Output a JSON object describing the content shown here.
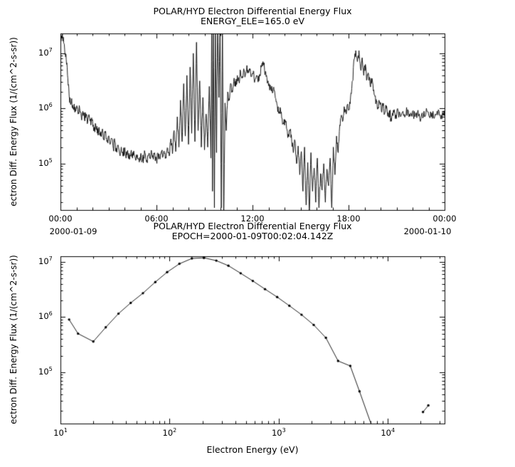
{
  "chart_data": [
    {
      "type": "line",
      "plot": "time_series",
      "title": "POLAR/HYD  Electron Differential Energy Flux",
      "subtitle": "ENERGY_ELE=165.0 eV",
      "ylabel": "ectron Diff. Energy Flux (1/(cm^2-s-sr))",
      "xlabel": "",
      "x_tick_labels": [
        "00:00",
        "06:00",
        "12:00",
        "18:00",
        "00:00"
      ],
      "x_tick_hours": [
        0,
        6,
        12,
        18,
        24
      ],
      "x_minor_every_hours": 1,
      "x_date_left": "2000-01-09",
      "x_date_right": "2000-01-10",
      "x_range_hours": [
        0,
        24
      ],
      "y_scale": "log10",
      "y_range_log10": [
        4.16,
        7.36
      ],
      "y_tick_exponents": [
        5,
        6,
        7
      ],
      "noise_amp_log10": 0.09,
      "line_color": "#000000",
      "legend": "none",
      "grid": "off",
      "points_t_hours_log10flux": [
        [
          0.0,
          7.28
        ],
        [
          0.07,
          7.32
        ],
        [
          0.14,
          7.25
        ],
        [
          0.22,
          7.18
        ],
        [
          0.3,
          7.0
        ],
        [
          0.38,
          6.8
        ],
        [
          0.46,
          6.55
        ],
        [
          0.54,
          6.25
        ],
        [
          0.62,
          6.1
        ],
        [
          0.7,
          6.18
        ],
        [
          0.78,
          6.0
        ],
        [
          0.86,
          6.08
        ],
        [
          0.94,
          5.95
        ],
        [
          1.02,
          6.05
        ],
        [
          1.1,
          5.9
        ],
        [
          1.2,
          6.0
        ],
        [
          1.3,
          5.85
        ],
        [
          1.4,
          5.95
        ],
        [
          1.5,
          5.8
        ],
        [
          1.6,
          5.9
        ],
        [
          1.7,
          5.75
        ],
        [
          1.8,
          5.85
        ],
        [
          1.9,
          5.7
        ],
        [
          2.0,
          5.8
        ],
        [
          2.1,
          5.6
        ],
        [
          2.2,
          5.72
        ],
        [
          2.3,
          5.55
        ],
        [
          2.4,
          5.66
        ],
        [
          2.5,
          5.5
        ],
        [
          2.6,
          5.6
        ],
        [
          2.7,
          5.45
        ],
        [
          2.8,
          5.56
        ],
        [
          2.9,
          5.4
        ],
        [
          3.0,
          5.5
        ],
        [
          3.1,
          5.35
        ],
        [
          3.2,
          5.45
        ],
        [
          3.3,
          5.28
        ],
        [
          3.4,
          5.4
        ],
        [
          3.5,
          5.22
        ],
        [
          3.6,
          5.34
        ],
        [
          3.7,
          5.18
        ],
        [
          3.8,
          5.3
        ],
        [
          3.9,
          5.14
        ],
        [
          4.0,
          5.26
        ],
        [
          4.1,
          5.1
        ],
        [
          4.2,
          5.24
        ],
        [
          4.3,
          5.08
        ],
        [
          4.4,
          5.2
        ],
        [
          4.5,
          5.1
        ],
        [
          4.6,
          5.18
        ],
        [
          4.7,
          5.06
        ],
        [
          4.8,
          5.16
        ],
        [
          4.9,
          5.08
        ],
        [
          5.0,
          5.14
        ],
        [
          5.1,
          5.04
        ],
        [
          5.2,
          5.12
        ],
        [
          5.3,
          5.18
        ],
        [
          5.4,
          5.06
        ],
        [
          5.5,
          5.15
        ],
        [
          5.6,
          5.1
        ],
        [
          5.7,
          5.2
        ],
        [
          5.8,
          5.08
        ],
        [
          5.9,
          5.16
        ],
        [
          6.0,
          5.06
        ],
        [
          6.1,
          5.18
        ],
        [
          6.2,
          5.1
        ],
        [
          6.3,
          5.22
        ],
        [
          6.4,
          5.12
        ],
        [
          6.5,
          5.18
        ],
        [
          6.6,
          5.1
        ],
        [
          6.7,
          5.28
        ],
        [
          6.8,
          5.14
        ],
        [
          6.9,
          5.45
        ],
        [
          7.0,
          5.18
        ],
        [
          7.1,
          5.6
        ],
        [
          7.2,
          5.22
        ],
        [
          7.3,
          5.85
        ],
        [
          7.4,
          5.3
        ],
        [
          7.5,
          6.15
        ],
        [
          7.6,
          5.4
        ],
        [
          7.7,
          6.45
        ],
        [
          7.8,
          5.5
        ],
        [
          7.9,
          6.6
        ],
        [
          8.0,
          5.35
        ],
        [
          8.1,
          6.75
        ],
        [
          8.2,
          5.55
        ],
        [
          8.3,
          7.0
        ],
        [
          8.4,
          5.4
        ],
        [
          8.5,
          7.2
        ],
        [
          8.6,
          5.6
        ],
        [
          8.7,
          6.5
        ],
        [
          8.8,
          5.3
        ],
        [
          8.9,
          6.2
        ],
        [
          9.0,
          5.25
        ],
        [
          9.1,
          5.9
        ],
        [
          9.2,
          5.3
        ],
        [
          9.3,
          6.4
        ],
        [
          9.4,
          5.1
        ],
        [
          9.45,
          7.5
        ],
        [
          9.5,
          4.5
        ],
        [
          9.55,
          7.55
        ],
        [
          9.62,
          4.2
        ],
        [
          9.68,
          7.5
        ],
        [
          9.75,
          5.2
        ],
        [
          9.82,
          7.55
        ],
        [
          9.9,
          6.2
        ],
        [
          9.97,
          7.5
        ],
        [
          10.05,
          4.2
        ],
        [
          10.12,
          7.55
        ],
        [
          10.2,
          3.95
        ],
        [
          10.28,
          6.1
        ],
        [
          10.36,
          5.6
        ],
        [
          10.45,
          6.3
        ],
        [
          10.55,
          6.15
        ],
        [
          10.65,
          6.45
        ],
        [
          10.75,
          6.3
        ],
        [
          10.85,
          6.55
        ],
        [
          10.95,
          6.4
        ],
        [
          11.05,
          6.6
        ],
        [
          11.15,
          6.5
        ],
        [
          11.25,
          6.68
        ],
        [
          11.35,
          6.55
        ],
        [
          11.45,
          6.72
        ],
        [
          11.55,
          6.6
        ],
        [
          11.65,
          6.78
        ],
        [
          11.75,
          6.65
        ],
        [
          11.85,
          6.72
        ],
        [
          11.95,
          6.58
        ],
        [
          12.05,
          6.68
        ],
        [
          12.15,
          6.52
        ],
        [
          12.25,
          6.6
        ],
        [
          12.35,
          6.48
        ],
        [
          12.45,
          6.62
        ],
        [
          12.55,
          6.75
        ],
        [
          12.65,
          6.85
        ],
        [
          12.75,
          6.7
        ],
        [
          12.85,
          6.58
        ],
        [
          12.95,
          6.48
        ],
        [
          13.05,
          6.42
        ],
        [
          13.15,
          6.35
        ],
        [
          13.25,
          6.28
        ],
        [
          13.35,
          6.32
        ],
        [
          13.45,
          6.18
        ],
        [
          13.55,
          6.05
        ],
        [
          13.65,
          5.92
        ],
        [
          13.75,
          5.98
        ],
        [
          13.85,
          5.82
        ],
        [
          13.95,
          5.72
        ],
        [
          14.05,
          5.78
        ],
        [
          14.15,
          5.62
        ],
        [
          14.25,
          5.5
        ],
        [
          14.35,
          5.62
        ],
        [
          14.45,
          5.4
        ],
        [
          14.55,
          5.2
        ],
        [
          14.65,
          5.42
        ],
        [
          14.75,
          5.0
        ],
        [
          14.85,
          5.32
        ],
        [
          14.95,
          4.8
        ],
        [
          15.05,
          5.22
        ],
        [
          15.15,
          4.5
        ],
        [
          15.25,
          5.3
        ],
        [
          15.35,
          4.25
        ],
        [
          15.45,
          5.02
        ],
        [
          15.55,
          4.1
        ],
        [
          15.65,
          5.2
        ],
        [
          15.75,
          4.5
        ],
        [
          15.85,
          4.92
        ],
        [
          15.95,
          4.3
        ],
        [
          16.05,
          5.1
        ],
        [
          16.15,
          4.2
        ],
        [
          16.25,
          4.82
        ],
        [
          16.35,
          4.52
        ],
        [
          16.45,
          5.0
        ],
        [
          16.55,
          4.3
        ],
        [
          16.65,
          4.9
        ],
        [
          16.75,
          4.6
        ],
        [
          16.85,
          5.1
        ],
        [
          16.95,
          4.2
        ],
        [
          17.05,
          5.3
        ],
        [
          17.15,
          4.8
        ],
        [
          17.25,
          5.5
        ],
        [
          17.35,
          5.2
        ],
        [
          17.45,
          5.7
        ],
        [
          17.55,
          5.88
        ],
        [
          17.65,
          5.78
        ],
        [
          17.75,
          6.0
        ],
        [
          17.85,
          5.9
        ],
        [
          17.95,
          6.08
        ],
        [
          18.05,
          5.98
        ],
        [
          18.15,
          6.28
        ],
        [
          18.25,
          6.5
        ],
        [
          18.35,
          6.9
        ],
        [
          18.45,
          7.05
        ],
        [
          18.55,
          6.85
        ],
        [
          18.65,
          7.05
        ],
        [
          18.75,
          6.72
        ],
        [
          18.85,
          6.92
        ],
        [
          18.95,
          6.6
        ],
        [
          19.05,
          6.8
        ],
        [
          19.15,
          6.52
        ],
        [
          19.25,
          6.62
        ],
        [
          19.35,
          6.42
        ],
        [
          19.45,
          6.5
        ],
        [
          19.55,
          6.32
        ],
        [
          19.65,
          6.22
        ],
        [
          19.75,
          6.12
        ],
        [
          19.85,
          6.02
        ],
        [
          19.95,
          6.12
        ],
        [
          20.05,
          5.95
        ],
        [
          20.15,
          6.05
        ],
        [
          20.25,
          5.9
        ],
        [
          20.35,
          6.0
        ],
        [
          20.45,
          5.86
        ],
        [
          20.55,
          5.96
        ],
        [
          20.65,
          5.82
        ],
        [
          20.75,
          5.92
        ],
        [
          20.85,
          5.98
        ],
        [
          20.95,
          5.88
        ],
        [
          21.1,
          5.95
        ],
        [
          21.25,
          5.85
        ],
        [
          21.4,
          5.95
        ],
        [
          21.55,
          5.88
        ],
        [
          21.7,
          5.98
        ],
        [
          21.85,
          5.86
        ],
        [
          22.0,
          5.95
        ],
        [
          22.15,
          5.85
        ],
        [
          22.3,
          5.92
        ],
        [
          22.45,
          5.82
        ],
        [
          22.6,
          5.92
        ],
        [
          22.75,
          5.85
        ],
        [
          22.9,
          5.95
        ],
        [
          23.05,
          5.85
        ],
        [
          23.2,
          5.92
        ],
        [
          23.35,
          5.82
        ],
        [
          23.5,
          5.9
        ],
        [
          23.65,
          5.95
        ],
        [
          23.8,
          5.88
        ],
        [
          23.95,
          5.92
        ],
        [
          24.0,
          5.9
        ]
      ]
    },
    {
      "type": "line",
      "plot": "spectrum",
      "title": "POLAR/HYD  Electron Differential Energy Flux",
      "subtitle": "EPOCH=2000-01-09T00:02:04.142Z",
      "xlabel": "Electron Energy (eV)",
      "ylabel": "ectron Diff. Energy Flux (1/(cm^2-s-sr))",
      "x_scale": "log10",
      "x_range_log10": [
        1.0,
        4.52
      ],
      "x_tick_exponents": [
        1,
        2,
        3,
        4
      ],
      "y_scale": "log10",
      "y_range_log10": [
        4.07,
        7.1
      ],
      "y_tick_exponents": [
        5,
        6,
        7
      ],
      "marker": "dot",
      "line_color": "#000000",
      "legend": "none",
      "grid": "off",
      "series": [
        {
          "name": "spectrum-main",
          "points_ev_flux": [
            [
              12,
              900000.0
            ],
            [
              14.5,
              500000.0
            ],
            [
              20,
              360000.0
            ],
            [
              26,
              650000.0
            ],
            [
              34,
              1150000.0
            ],
            [
              44,
              1800000.0
            ],
            [
              57,
              2700000.0
            ],
            [
              74,
              4300000.0
            ],
            [
              95,
              6500000.0
            ],
            [
              123,
              9200000.0
            ],
            [
              160,
              11500000.0
            ],
            [
              207,
              11800000.0
            ],
            [
              268,
              10500000.0
            ],
            [
              346,
              8500000.0
            ],
            [
              448,
              6200000.0
            ],
            [
              579,
              4500000.0
            ],
            [
              749,
              3200000.0
            ],
            [
              968,
              2300000.0
            ],
            [
              1252,
              1600000.0
            ],
            [
              1619,
              1100000.0
            ],
            [
              2093,
              720000.0
            ],
            [
              2706,
              420000.0
            ],
            [
              3500,
              160000.0
            ],
            [
              4525,
              130000.0
            ],
            [
              5500,
              45000.0
            ],
            [
              7500,
              8000.0
            ]
          ]
        },
        {
          "name": "spectrum-tail",
          "points_ev_flux": [
            [
              21000,
              19000.0
            ],
            [
              23500,
              25000.0
            ]
          ]
        }
      ]
    }
  ]
}
